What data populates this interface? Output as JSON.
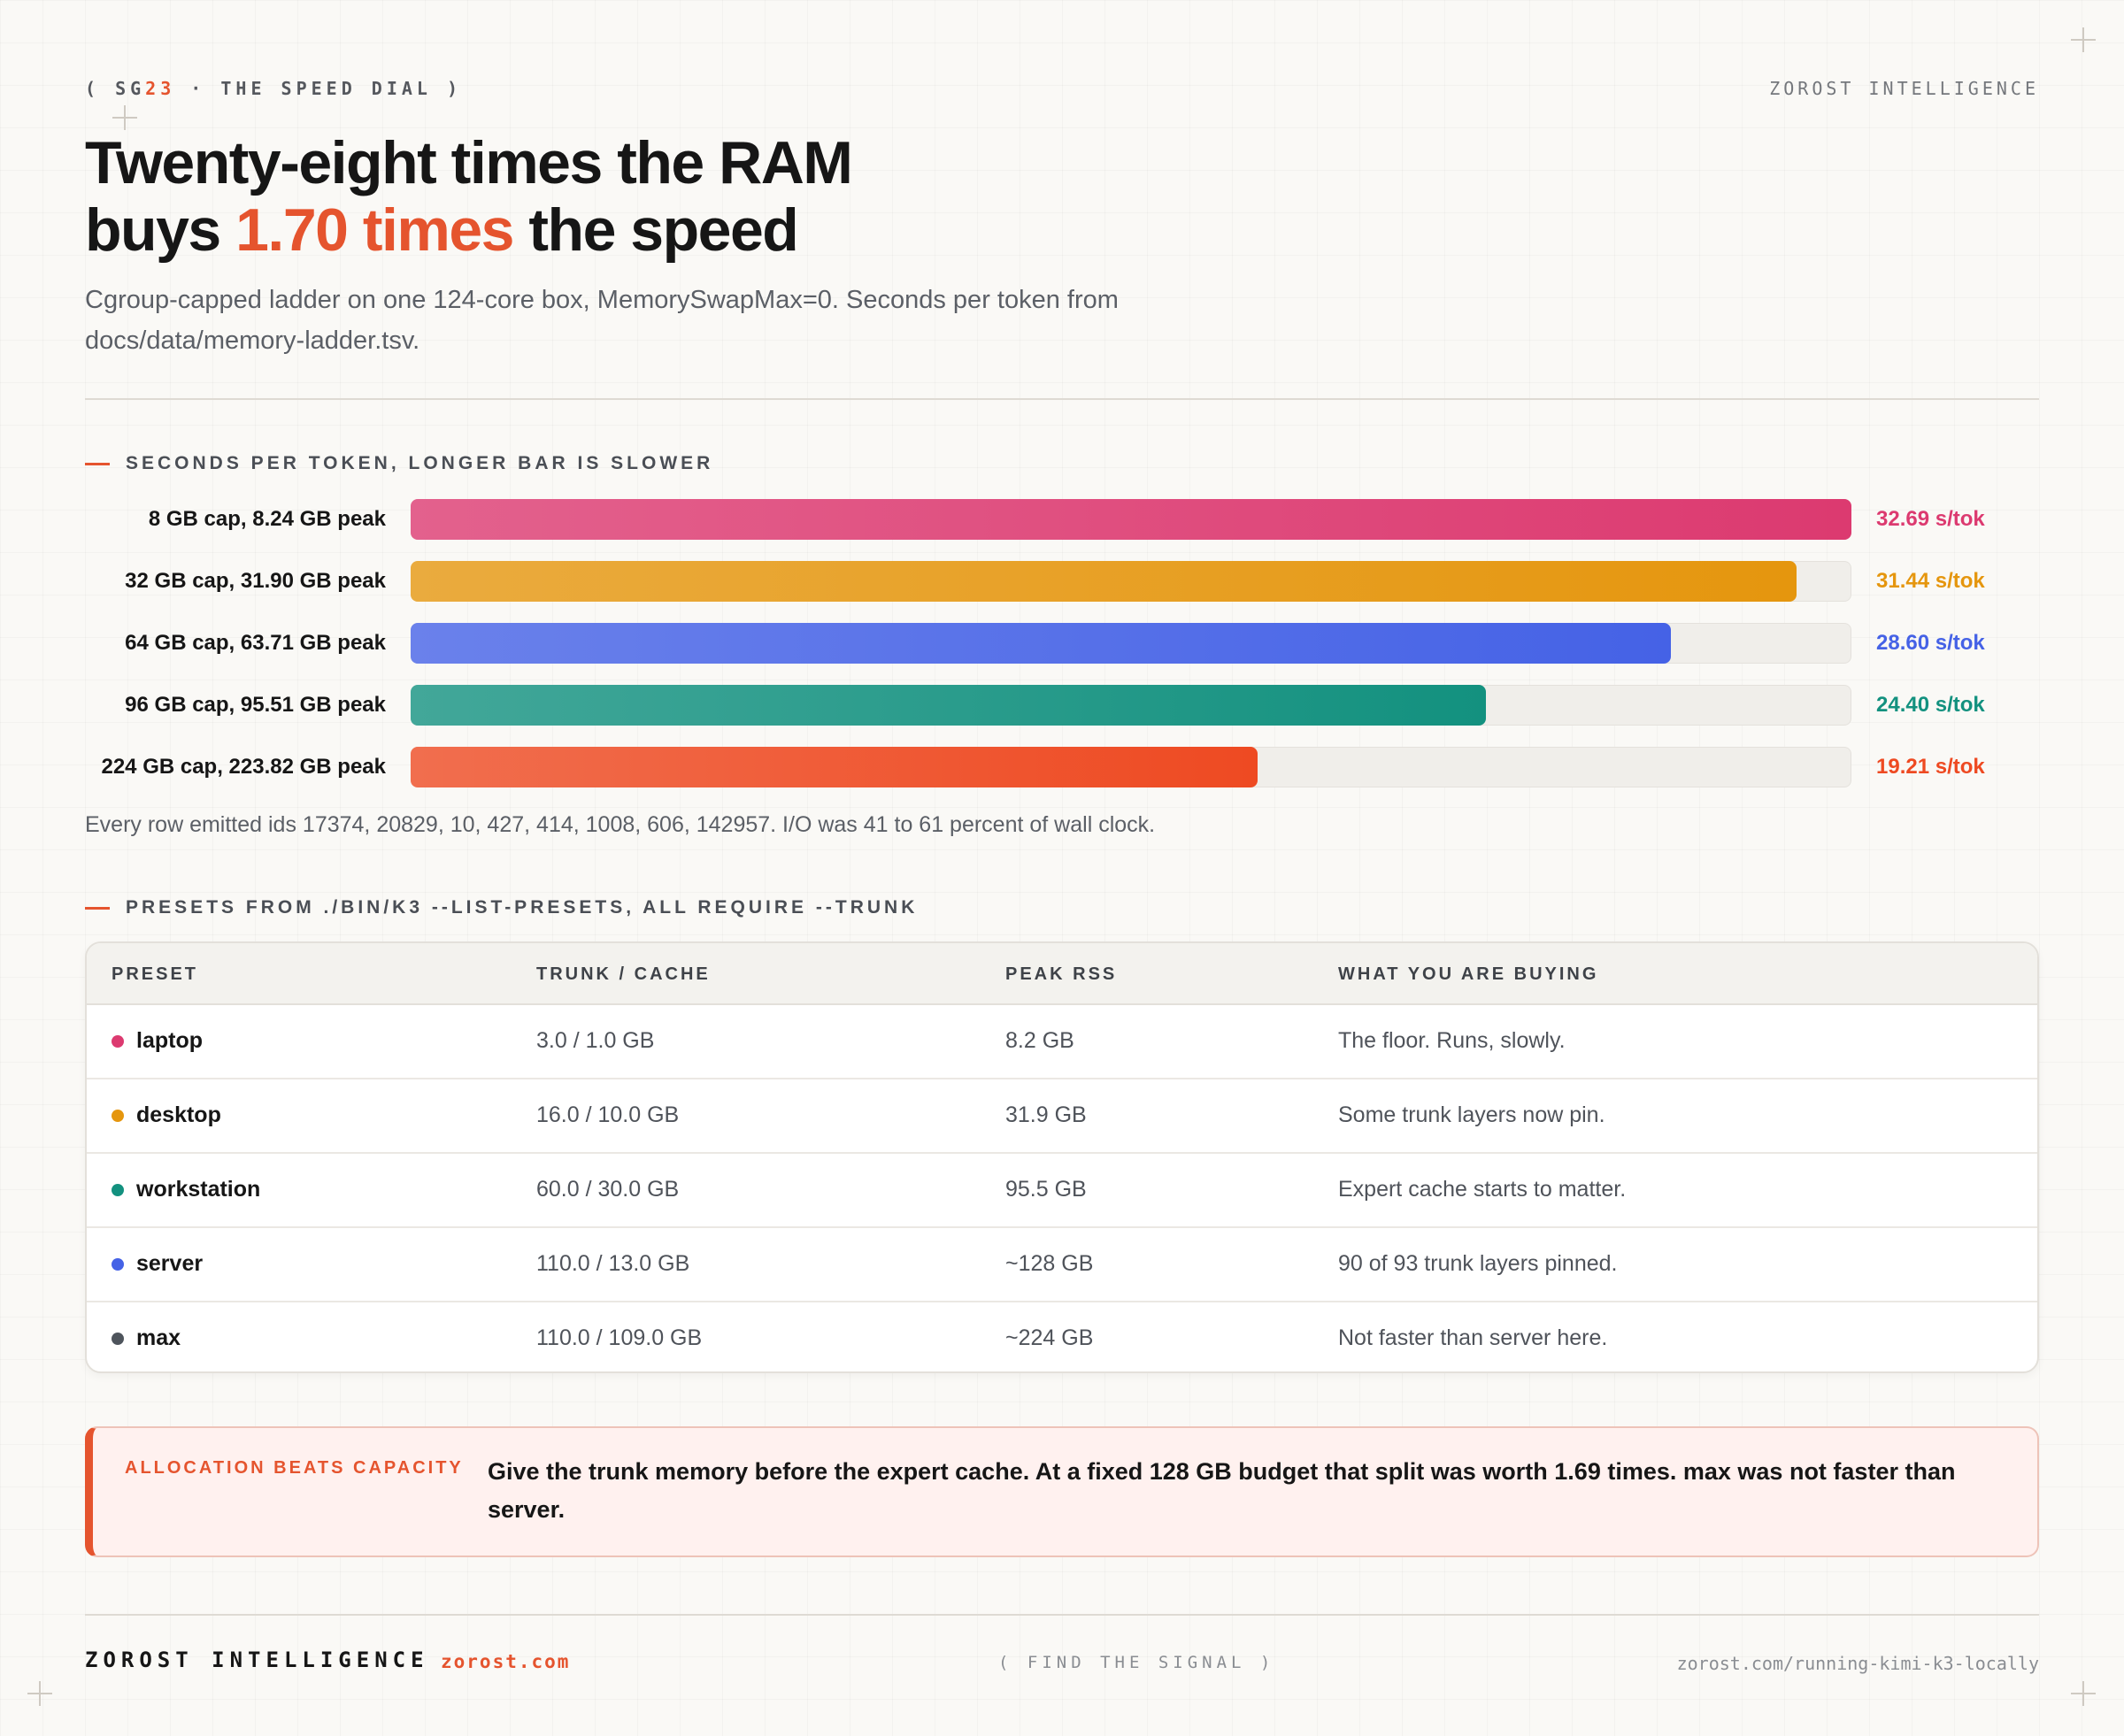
{
  "kicker": {
    "prefix": "( SG",
    "accent": "23",
    "suffix": " · THE SPEED DIAL )"
  },
  "brand": "ZOROST INTELLIGENCE",
  "headline": {
    "line1": "Twenty-eight times the RAM",
    "line2_before": "buys ",
    "line2_highlight": "1.70 times",
    "line2_after": " the speed"
  },
  "subtitle": "Cgroup-capped ladder on one 124-core box, MemorySwapMax=0. Seconds per token from docs/data/memory-ladder.tsv.",
  "chart_data": {
    "type": "bar",
    "orientation": "horizontal",
    "title": "SECONDS PER TOKEN, LONGER BAR IS SLOWER",
    "categories": [
      "8 GB cap, 8.24 GB peak",
      "32 GB cap, 31.90 GB peak",
      "64 GB cap, 63.71 GB peak",
      "96 GB cap, 95.51 GB peak",
      "224 GB cap, 223.82 GB peak"
    ],
    "values": [
      32.69,
      31.44,
      28.6,
      24.4,
      19.21
    ],
    "value_labels": [
      "32.69 s/tok",
      "31.44 s/tok",
      "28.60 s/tok",
      "24.40 s/tok",
      "19.21 s/tok"
    ],
    "unit": "s/tok",
    "xlim": [
      0,
      32.69
    ],
    "colors": [
      "#dc3a70",
      "#e5960e",
      "#4562e6",
      "#13917f",
      "#ee4a22"
    ],
    "grid": false,
    "legend": "none"
  },
  "chart_note": "Every row emitted ids 17374, 20829, 10, 427, 414, 1008, 606, 142957. I/O was 41 to 61 percent of wall clock.",
  "presets": {
    "title": "PRESETS FROM ./BIN/K3 --LIST-PRESETS, ALL REQUIRE --TRUNK",
    "headers": [
      "PRESET",
      "TRUNK / CACHE",
      "PEAK RSS",
      "WHAT YOU ARE BUYING"
    ],
    "rows": [
      {
        "name": "laptop",
        "trunk_cache": "3.0 / 1.0 GB",
        "peak_rss": "8.2 GB",
        "buying": "The floor. Runs, slowly.",
        "color": "#dc3a70"
      },
      {
        "name": "desktop",
        "trunk_cache": "16.0 / 10.0 GB",
        "peak_rss": "31.9 GB",
        "buying": "Some trunk layers now pin.",
        "color": "#e5960e"
      },
      {
        "name": "workstation",
        "trunk_cache": "60.0 / 30.0 GB",
        "peak_rss": "95.5 GB",
        "buying": "Expert cache starts to matter.",
        "color": "#13917f"
      },
      {
        "name": "server",
        "trunk_cache": "110.0 / 13.0 GB",
        "peak_rss": "~128 GB",
        "buying": "90 of 93 trunk layers pinned.",
        "color": "#4562e6"
      },
      {
        "name": "max",
        "trunk_cache": "110.0 / 109.0 GB",
        "peak_rss": "~224 GB",
        "buying": "Not faster than server here.",
        "color": "#4e545c"
      }
    ]
  },
  "callout": {
    "label": "ALLOCATION BEATS CAPACITY",
    "text": "Give the trunk memory before the expert cache. At a fixed 128 GB budget that split was worth 1.69 times. max was not faster than server."
  },
  "footer": {
    "brand": "ZOROST INTELLIGENCE",
    "url": "zorost.com",
    "tagline": "( FIND THE SIGNAL )",
    "link": "zorost.com/running-kimi-k3-locally"
  },
  "colors": {
    "accent": "#e5542e"
  }
}
